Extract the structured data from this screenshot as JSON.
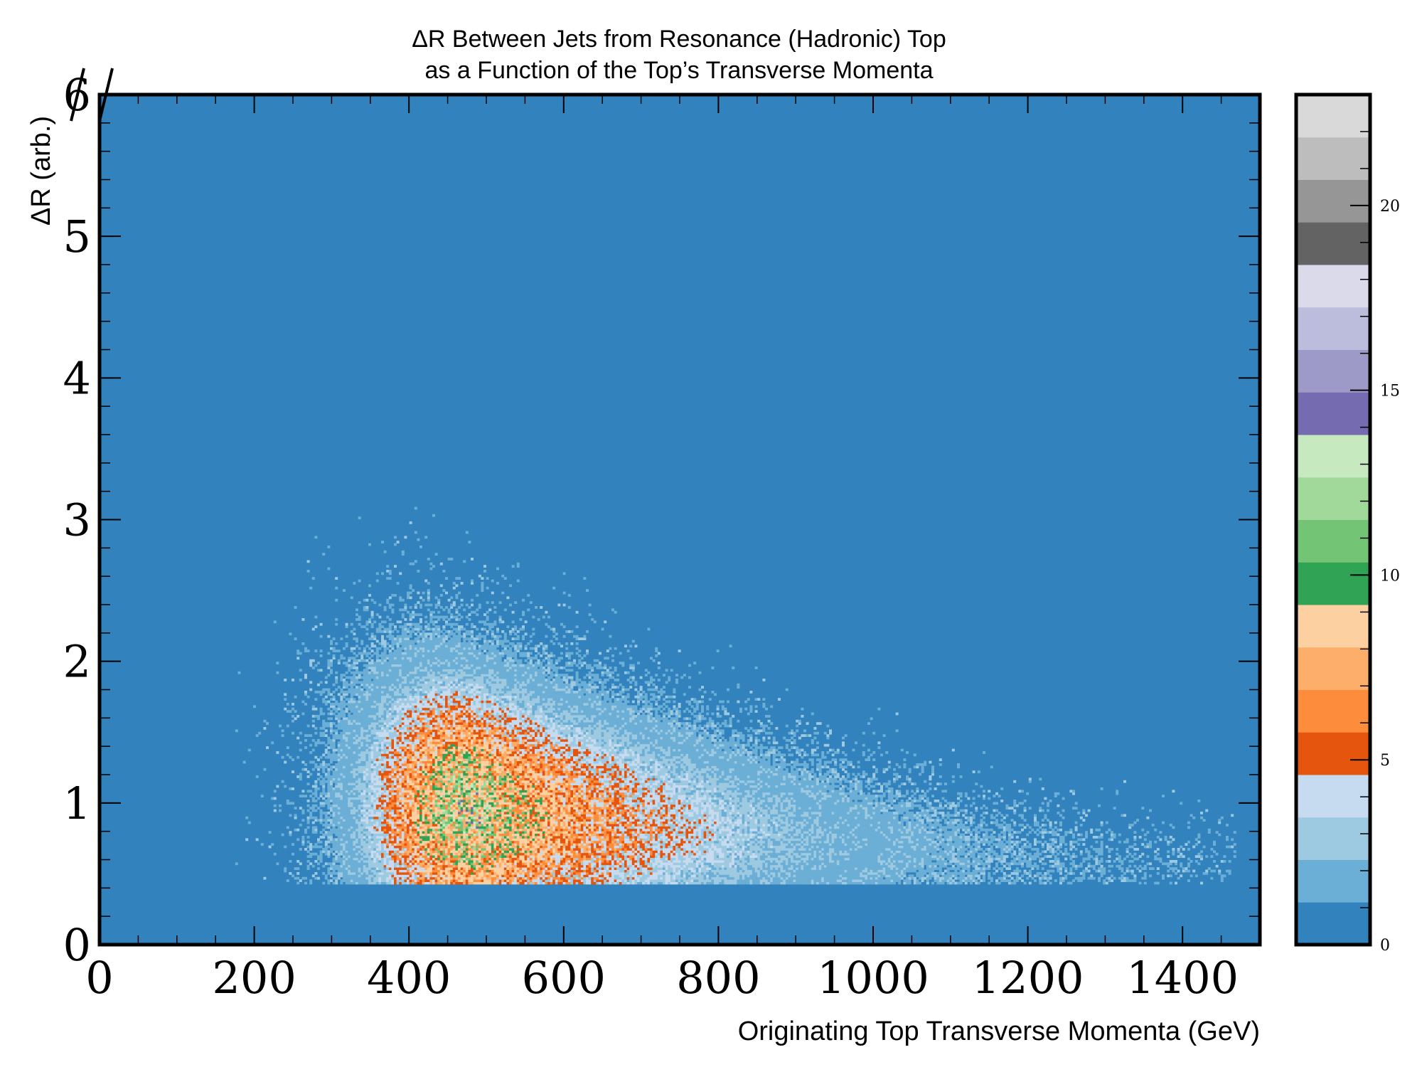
{
  "chart_data": {
    "type": "heatmap",
    "title_line1": "ΔR Between Jets from Resonance (Hadronic) Top",
    "title_line2": "as a Function of the Top’s Transverse Momenta",
    "xlabel": "Originating Top Transverse Momenta (GeV)",
    "ylabel": "ΔR (arb.)",
    "xlim": [
      0,
      1500
    ],
    "ylim": [
      0,
      6
    ],
    "x_ticks": [
      0,
      200,
      400,
      600,
      800,
      1000,
      1200,
      1400
    ],
    "x_tick_labels": [
      "0",
      "200",
      "400",
      "600",
      "800",
      "1000",
      "1200",
      "1400"
    ],
    "y_ticks": [
      0,
      1,
      2,
      3,
      4,
      5,
      6
    ],
    "y_tick_labels": [
      "0",
      "1",
      "2",
      "3",
      "4",
      "5",
      "6"
    ],
    "background_color": "#3182bd",
    "colorbar": {
      "range": [
        0,
        23
      ],
      "ticks": [
        0,
        5,
        10,
        15,
        20
      ],
      "tick_labels": [
        "0",
        "5",
        "10",
        "15",
        "20"
      ],
      "colors": [
        "#3182bd",
        "#6baed6",
        "#9ecae1",
        "#c6dbef",
        "#e6550d",
        "#fd8d3c",
        "#fdae6b",
        "#fdd0a2",
        "#31a354",
        "#74c476",
        "#a1d99b",
        "#c7e9c0",
        "#756bb1",
        "#9e9ac8",
        "#bcbddc",
        "#dadaeb",
        "#636363",
        "#969696",
        "#bdbdbd",
        "#d9d9d9"
      ]
    },
    "density_peak": {
      "x": 480,
      "y": 0.7,
      "max_count": 11
    },
    "lower_edge_dr": 0.42
  }
}
